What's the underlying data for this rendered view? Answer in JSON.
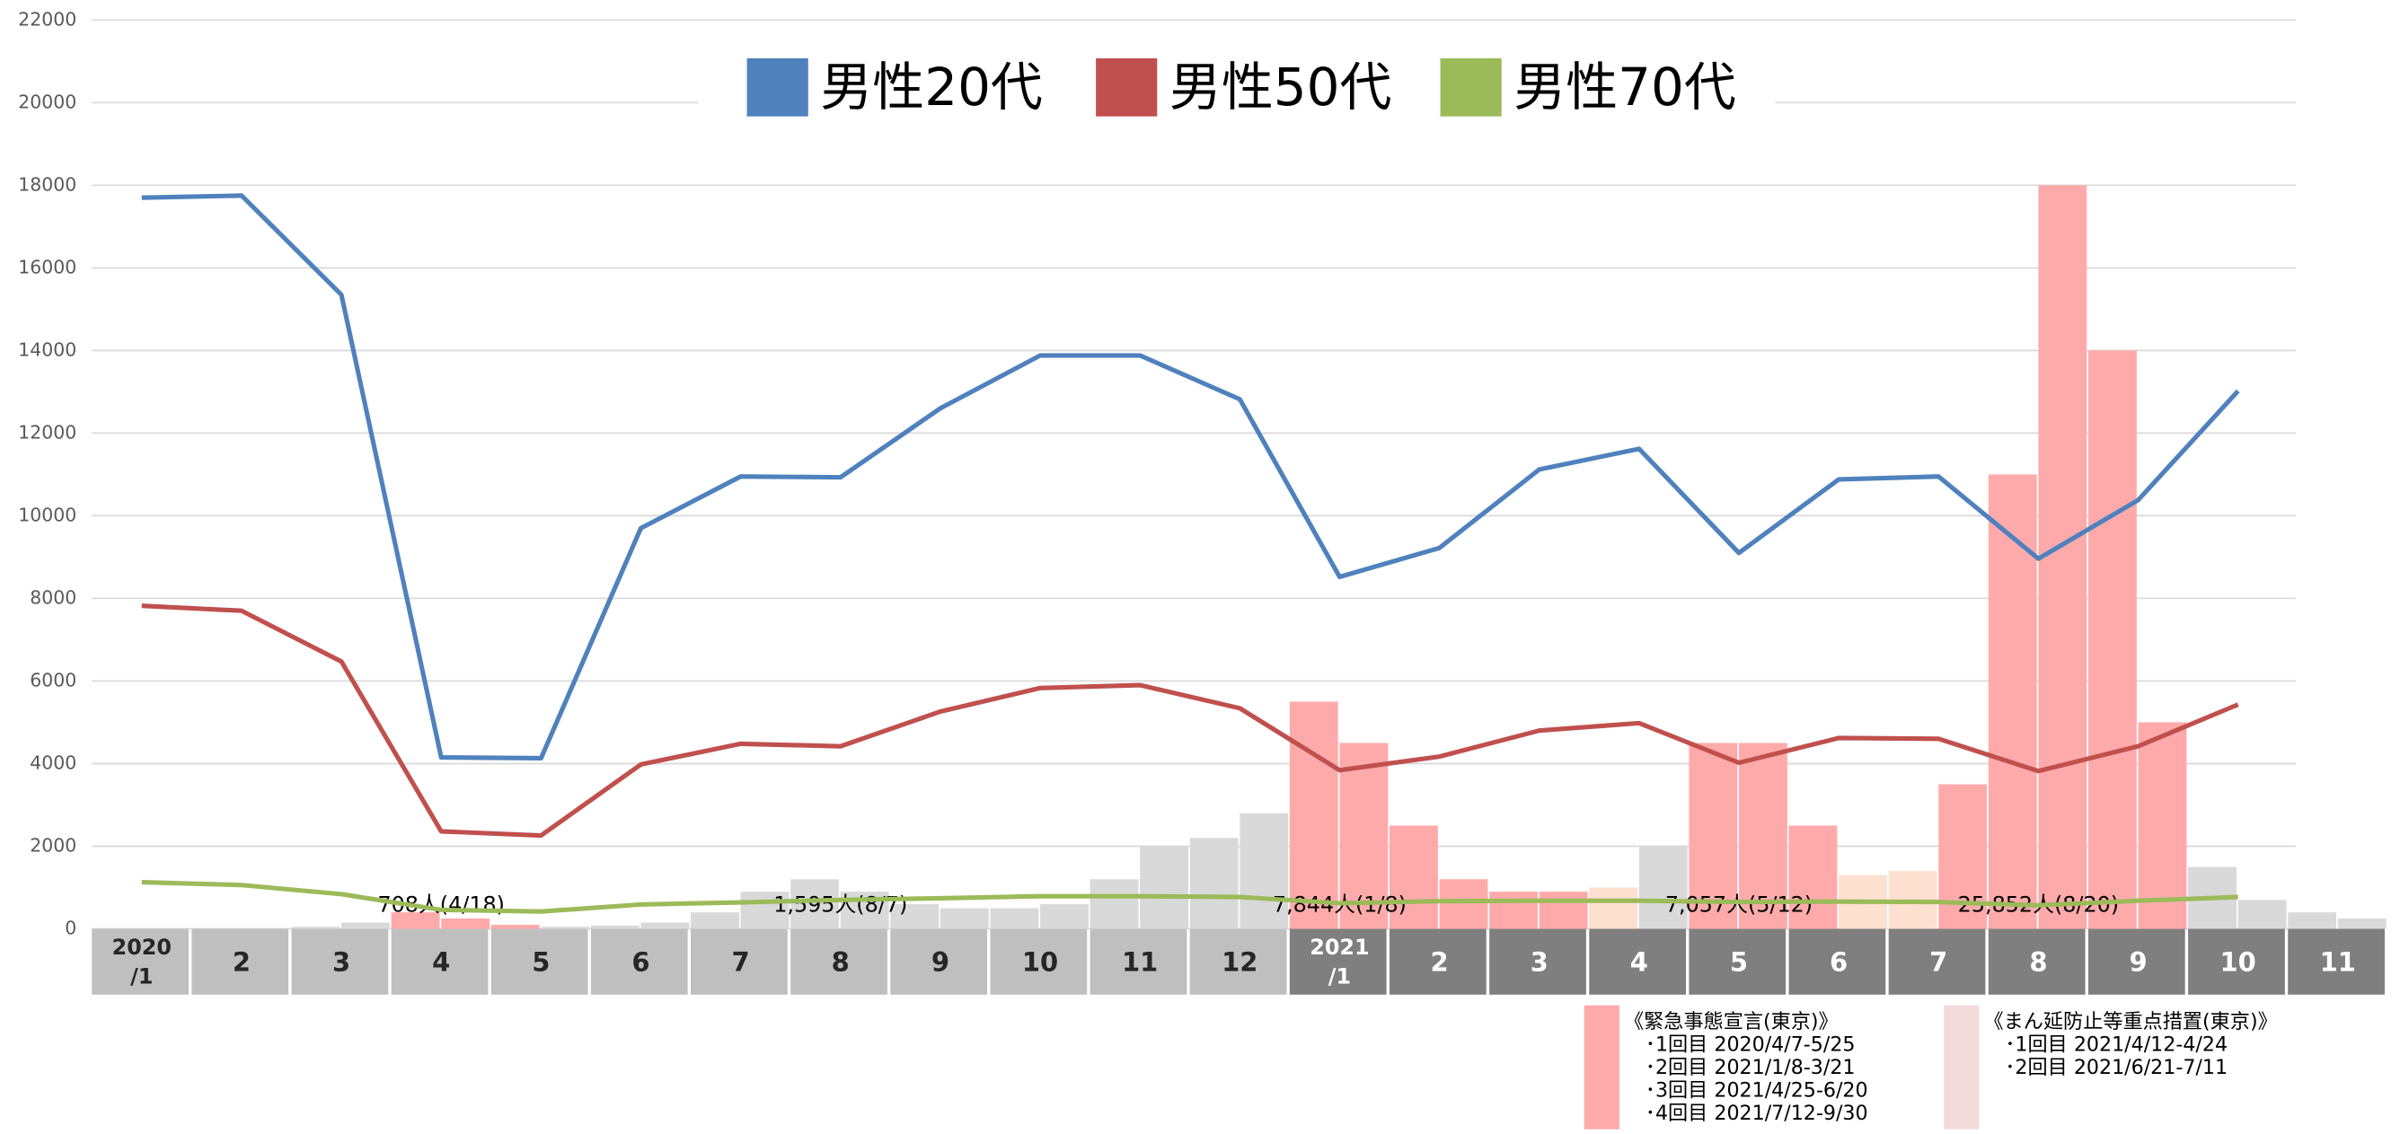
{
  "chart_data": {
    "type": "line",
    "categories": [
      [
        "2020",
        "/1"
      ],
      "2",
      "3",
      "4",
      "5",
      "6",
      "7",
      "8",
      "9",
      "10",
      "11",
      "12",
      [
        "2021",
        "/1"
      ],
      "2",
      "3",
      "4",
      "5",
      "6",
      "7",
      "8",
      "9",
      "10",
      "11"
    ],
    "series": [
      {
        "name": "男性20代",
        "color": "#4f81bd",
        "values": [
          17700,
          17750,
          15350,
          4150,
          4130,
          9700,
          10950,
          10930,
          12600,
          13880,
          13880,
          12820,
          8520,
          9220,
          11120,
          11620,
          9100,
          10880,
          10950,
          8960,
          10380,
          13020,
          null
        ]
      },
      {
        "name": "男性50代",
        "color": "#c0504d",
        "values": [
          7820,
          7700,
          6470,
          2360,
          2260,
          3980,
          4480,
          4420,
          5260,
          5830,
          5900,
          5340,
          3840,
          4170,
          4800,
          4980,
          4020,
          4620,
          4600,
          3820,
          4420,
          5430,
          null
        ]
      },
      {
        "name": "男性70代",
        "color": "#9bbb59",
        "values": [
          1130,
          1060,
          840,
          460,
          420,
          590,
          640,
          700,
          740,
          790,
          790,
          770,
          620,
          670,
          680,
          680,
          650,
          660,
          650,
          570,
          680,
          770,
          null
        ]
      }
    ],
    "daily_cases": {
      "values": [
        0,
        0,
        0,
        0,
        50,
        150,
        400,
        250,
        100,
        50,
        80,
        150,
        400,
        900,
        1200,
        900,
        600,
        500,
        500,
        600,
        1200,
        2000,
        2200,
        2800,
        5500,
        4500,
        2500,
        1200,
        900,
        900,
        1000,
        2000,
        4500,
        4500,
        2500,
        1300,
        1400,
        3500,
        11000,
        18000,
        14000,
        5000,
        1500,
        700,
        400,
        250
      ],
      "colors": [
        "#d9d9d9",
        "#d9d9d9",
        "#d9d9d9",
        "#d9d9d9",
        "#d9d9d9",
        "#d9d9d9",
        "#ffaaaa",
        "#ffaaaa",
        "#ffaaaa",
        "#d9d9d9",
        "#d9d9d9",
        "#d9d9d9",
        "#d9d9d9",
        "#d9d9d9",
        "#d9d9d9",
        "#d9d9d9",
        "#d9d9d9",
        "#d9d9d9",
        "#d9d9d9",
        "#d9d9d9",
        "#d9d9d9",
        "#d9d9d9",
        "#d9d9d9",
        "#d9d9d9",
        "#ffaaaa",
        "#ffaaaa",
        "#ffaaaa",
        "#ffaaaa",
        "#ffaaaa",
        "#ffaaaa",
        "#fde0cf",
        "#d9d9d9",
        "#ffaaaa",
        "#ffaaaa",
        "#ffaaaa",
        "#fde0cf",
        "#fde0cf",
        "#ffaaaa",
        "#ffaaaa",
        "#ffaaaa",
        "#ffaaaa",
        "#ffaaaa",
        "#d9d9d9",
        "#d9d9d9",
        "#d9d9d9",
        "#d9d9d9"
      ]
    },
    "annotations": [
      {
        "text": "708人(4/18)",
        "index": 3
      },
      {
        "text": "1,595人(8/7)",
        "index": 7
      },
      {
        "text": "7,844人(1/8)",
        "index": 12
      },
      {
        "text": "7,057人(5/12)",
        "index": 16
      },
      {
        "text": "25,852人(8/20)",
        "index": 19
      }
    ],
    "ylim": [
      0,
      22000
    ],
    "yticks": [
      0,
      2000,
      4000,
      6000,
      8000,
      10000,
      12000,
      14000,
      16000,
      18000,
      20000,
      22000
    ],
    "grid": true,
    "notes": [
      {
        "color": "#ffaaaa",
        "lines": [
          "《緊急事態宣言(東京)》",
          "･1回目  2020/4/7-5/25",
          "･2回目  2021/1/8-3/21",
          "･3回目  2021/4/25-6/20",
          "･4回目  2021/7/12-9/30"
        ]
      },
      {
        "color": "#f2dcdb",
        "lines": [
          "《まん延防止等重点措置(東京)》",
          "･1回目  2021/4/12-4/24",
          "･2回目  2021/6/21-7/11"
        ]
      }
    ]
  }
}
